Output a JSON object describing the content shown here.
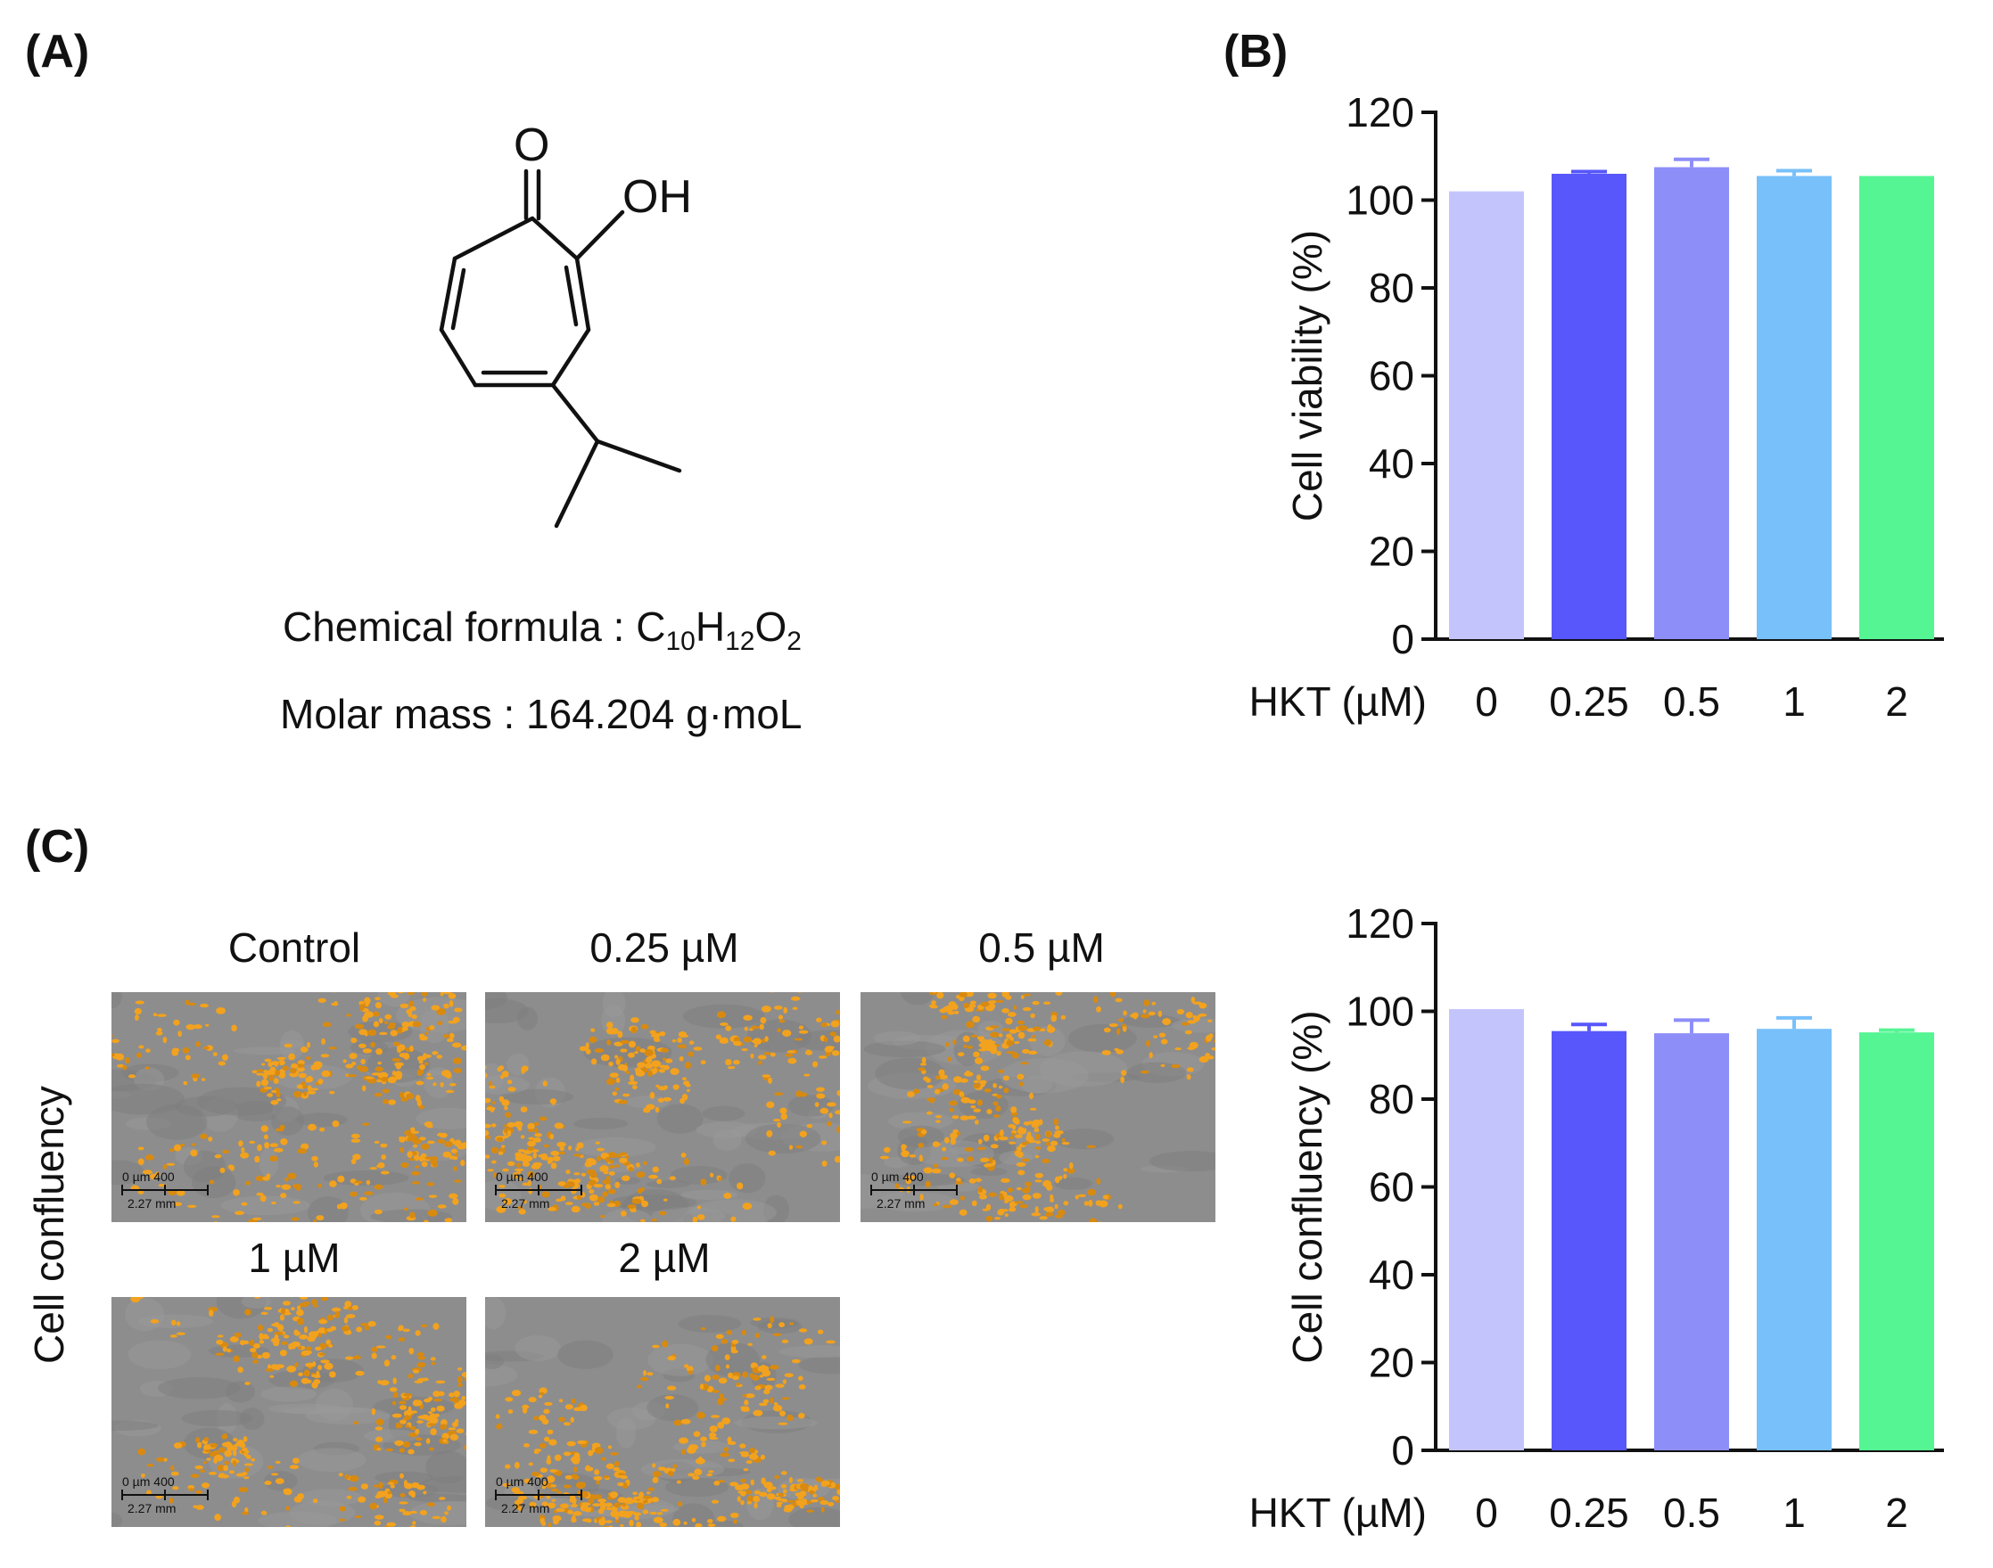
{
  "panels": {
    "a": "(A)",
    "b": "(B)",
    "c": "(C)"
  },
  "molecule": {
    "o_label": "O",
    "oh_label": "OH",
    "formula_prefix": "Chemical formula : C",
    "c_sub": "10",
    "h": "H",
    "h_sub": "12",
    "o": "O",
    "o_sub": "2",
    "molar_mass": "Molar mass : 164.204 g·moL"
  },
  "micrographs": {
    "side_label": "Cell confluency",
    "scale_bar_text": "0  µm 400",
    "scale_bar_mm": "2.27 mm",
    "items": [
      {
        "label": "Control"
      },
      {
        "label": "0.25 µM"
      },
      {
        "label": "0.5 µM"
      },
      {
        "label": "1 µM"
      },
      {
        "label": "2 µM"
      }
    ]
  },
  "chart_data": [
    {
      "type": "bar",
      "ylabel": "Cell viability (%)",
      "xlabel": "HKT (µM)",
      "categories": [
        "0",
        "0.25",
        "0.5",
        "1",
        "2"
      ],
      "values": [
        102,
        106,
        107.5,
        105.5,
        105.5
      ],
      "errors": [
        0,
        0.5,
        1.8,
        1.2,
        0
      ],
      "ylim": [
        0,
        120
      ],
      "yticks": [
        0,
        20,
        40,
        60,
        80,
        100,
        120
      ],
      "colors": [
        "#c4c4fc",
        "#5757fb",
        "#8e8ef9",
        "#78c0fa",
        "#55f594"
      ]
    },
    {
      "type": "bar",
      "ylabel": "Cell confluency (%)",
      "xlabel": "HKT (µM)",
      "categories": [
        "0",
        "0.25",
        "0.5",
        "1",
        "2"
      ],
      "values": [
        100.5,
        95.5,
        95,
        96,
        95.2
      ],
      "errors": [
        0,
        1.5,
        3,
        2.5,
        0.5
      ],
      "ylim": [
        0,
        120
      ],
      "yticks": [
        0,
        20,
        40,
        60,
        80,
        100,
        120
      ],
      "colors": [
        "#c4c4fc",
        "#5757fb",
        "#8e8ef9",
        "#78c0fa",
        "#55f594"
      ]
    }
  ]
}
